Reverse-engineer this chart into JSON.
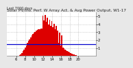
{
  "title": "Solar PV/Inv. Perf. W Array Act. & Avg Power Output, W1-17",
  "subtitle": "Last 7000 days",
  "bg_color": "#e8e8e8",
  "plot_bg": "#ffffff",
  "bar_color": "#dd0000",
  "avg_line_color": "#0000cc",
  "avg_value": 1.5,
  "ylim": [
    0,
    5.5
  ],
  "yticks": [
    1,
    2,
    3,
    4,
    5
  ],
  "grid_color": "#aaaaaa",
  "bar_data": [
    0.0,
    0.0,
    0.0,
    0.0,
    0.0,
    0.0,
    0.0,
    0.0,
    0.01,
    0.03,
    0.06,
    0.12,
    0.22,
    0.38,
    0.58,
    0.82,
    1.08,
    1.35,
    1.62,
    1.88,
    2.12,
    2.35,
    2.56,
    2.74,
    2.9,
    3.04,
    3.16,
    3.26,
    3.34,
    3.4,
    3.44,
    3.46,
    3.46,
    3.44,
    3.4,
    3.34,
    3.26,
    3.16,
    3.04,
    2.9,
    2.74,
    2.56,
    2.38,
    2.2,
    2.02,
    1.84,
    1.66,
    1.5,
    1.34,
    1.2,
    1.06,
    0.93,
    0.81,
    0.7,
    0.6,
    0.51,
    0.43,
    0.35,
    0.28,
    0.22,
    0.17,
    0.12,
    0.08,
    0.05,
    0.03,
    0.01,
    0.0,
    0.0,
    0.0,
    0.0,
    0.0,
    0.0,
    0.0,
    0.0,
    0.0,
    0.0,
    0.0,
    0.0,
    0.0,
    0.0
  ],
  "spike_indices": [
    32,
    33,
    34,
    35,
    36,
    37,
    38,
    39,
    40,
    41,
    42,
    43,
    44,
    45,
    47,
    49
  ],
  "spike_values": [
    5.1,
    4.5,
    5.2,
    4.3,
    4.8,
    4.0,
    4.6,
    3.8,
    4.4,
    3.6,
    4.1,
    3.4,
    3.8,
    3.2,
    2.9,
    2.6
  ],
  "xtick_positions": [
    8,
    16,
    24,
    32,
    40,
    48,
    56,
    64
  ],
  "xtick_labels": [
    "6",
    "8",
    "10",
    "12",
    "14",
    "16",
    "18",
    "20"
  ],
  "title_fontsize": 4.2,
  "subtitle_fontsize": 3.5,
  "tick_fontsize": 3.8
}
